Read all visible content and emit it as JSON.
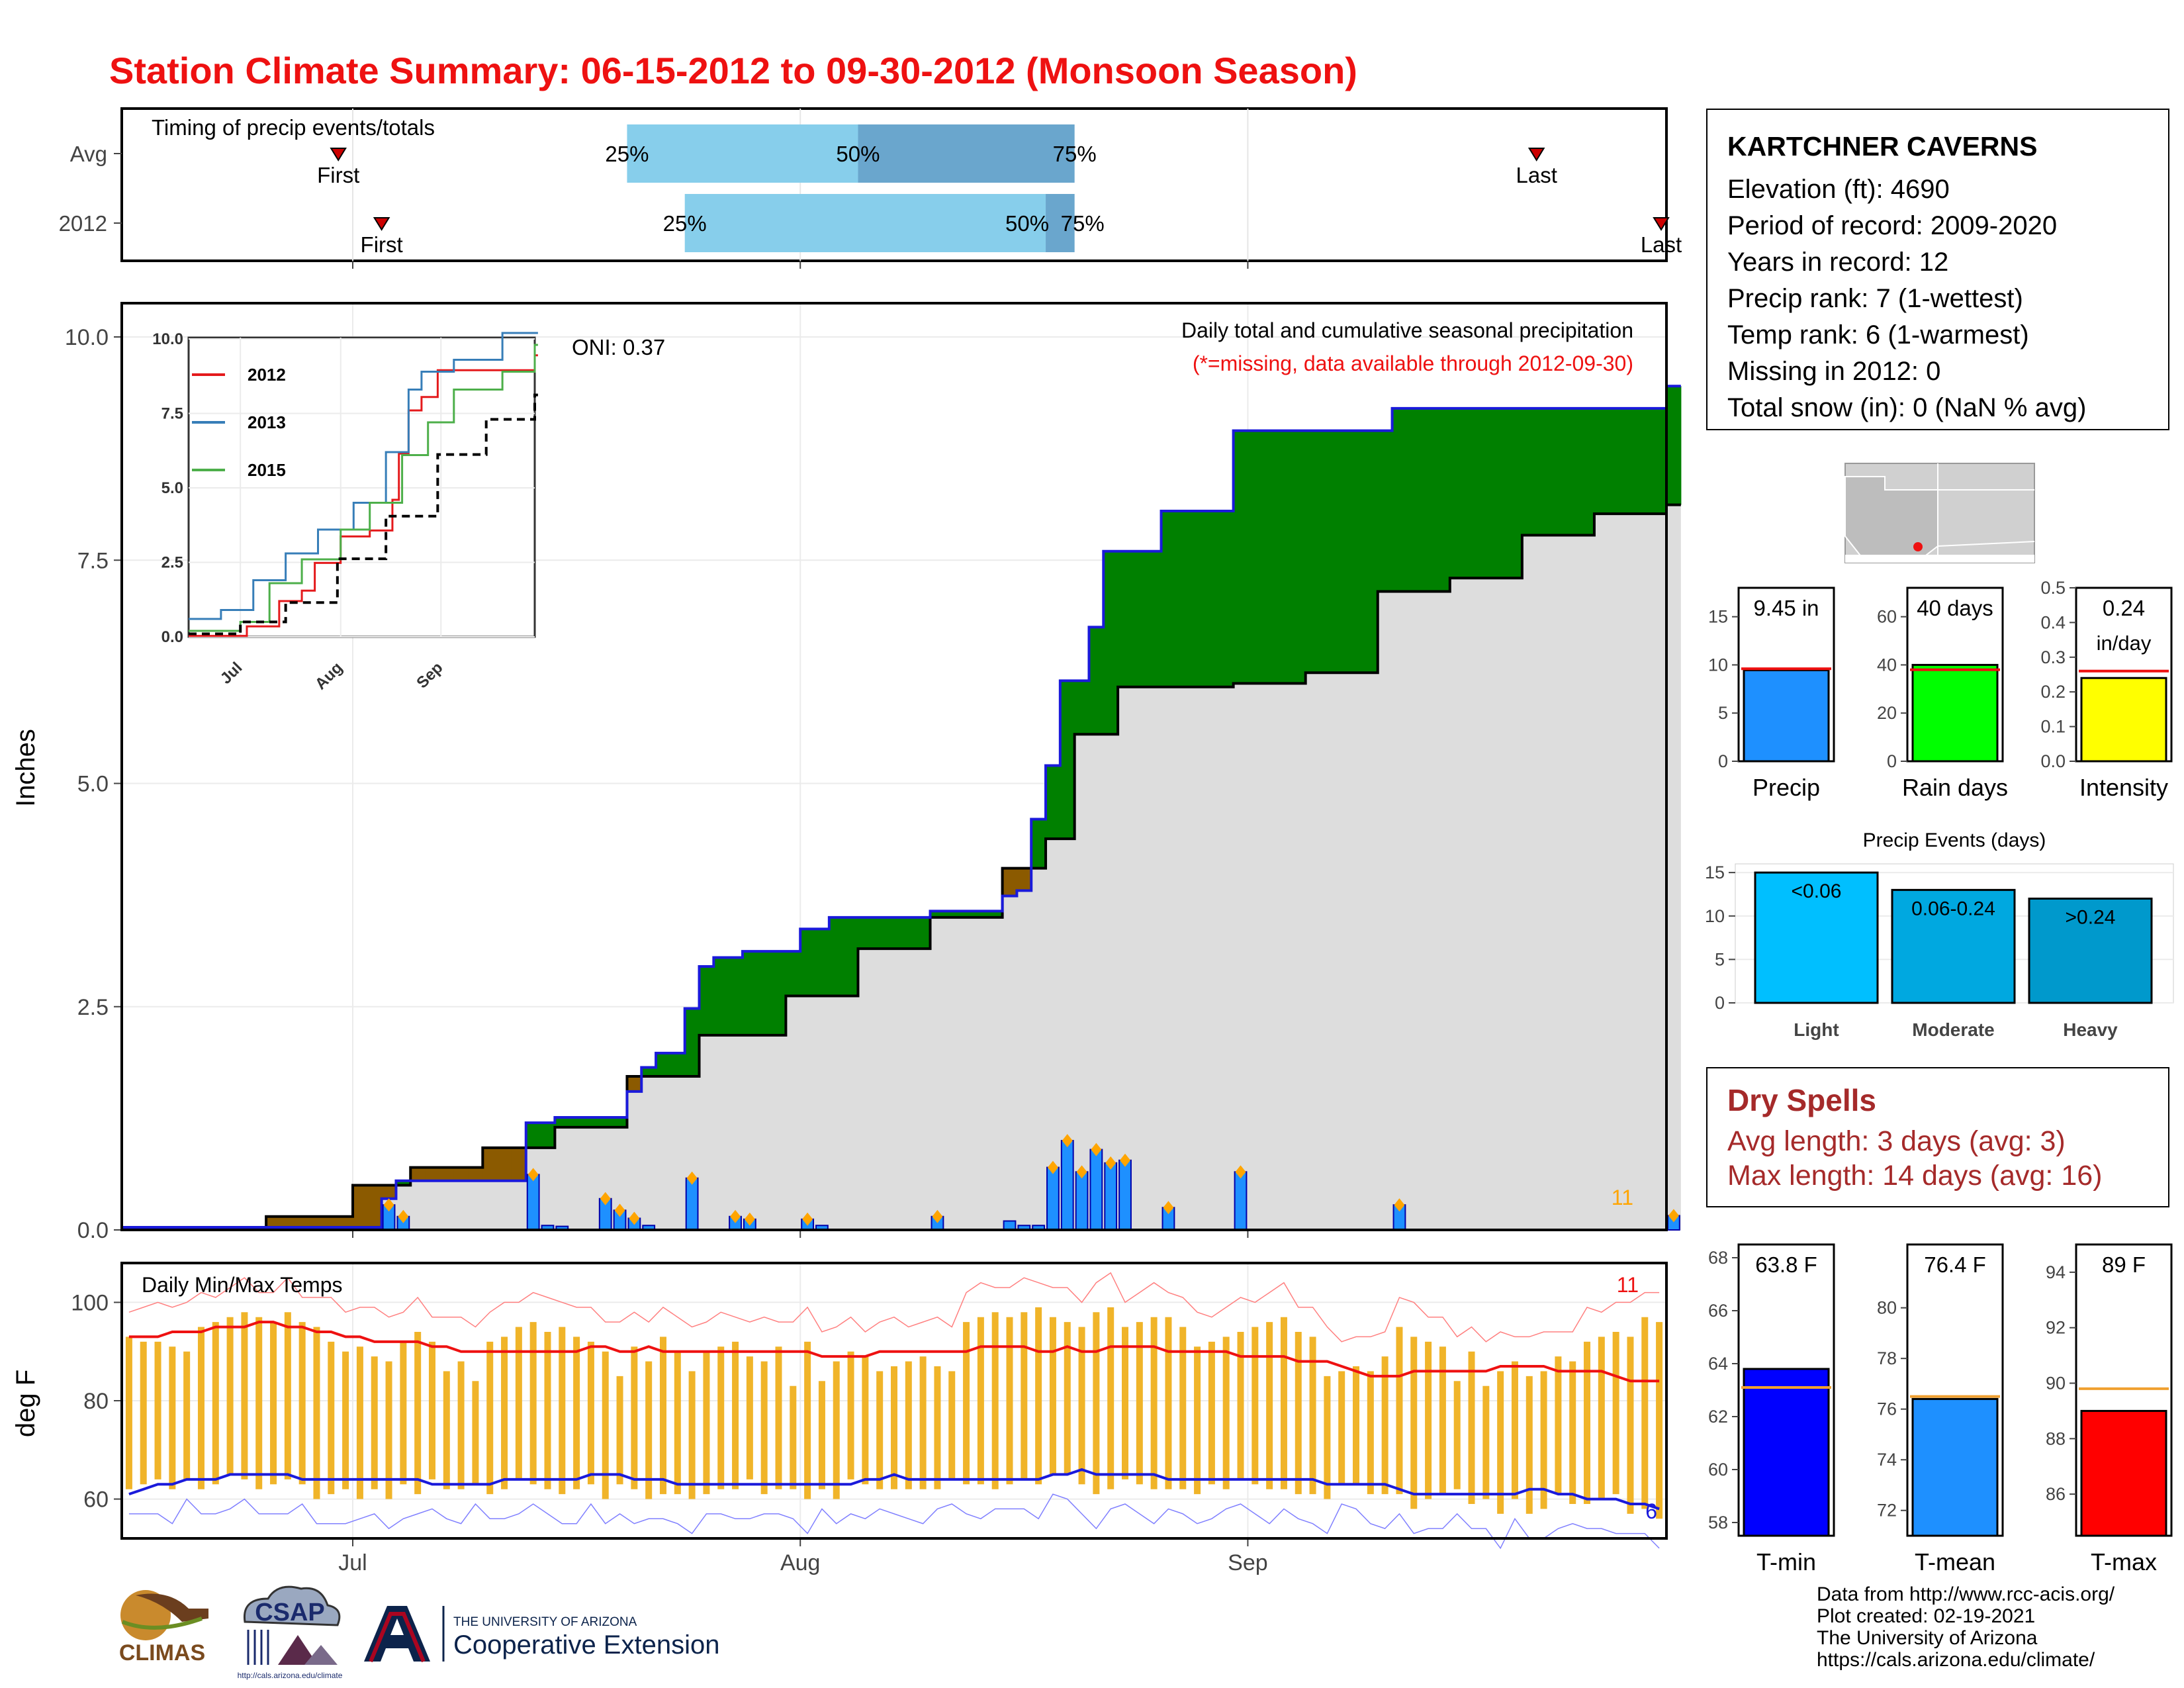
{
  "title": "Station Climate Summary: 06-15-2012 to 09-30-2012 (Monsoon Season)",
  "station": {
    "name": "KARTCHNER CAVERNS",
    "lines": [
      "Elevation (ft): 4690",
      "Period of record: 2009-2020",
      "Years in record: 12",
      "Precip rank: 7 (1-wettest)",
      "Temp rank: 6 (1-warmest)",
      "Missing in 2012: 0",
      "Total snow (in): 0 (NaN % avg)"
    ]
  },
  "dry_spells": {
    "heading": "Dry Spells",
    "avg": "Avg length: 3 days (avg: 3)",
    "max": "Max length: 14 days (avg: 16)"
  },
  "footer": [
    "Data from http://www.rcc-acis.org/",
    "Plot created: 02-19-2021",
    "The University of Arizona",
    "https://cals.arizona.edu/climate/"
  ],
  "logos": {
    "climas": "CLIMAS",
    "csap": "CSAP",
    "ua_line1": "THE UNIVERSITY OF ARIZONA",
    "ua_line2": "Cooperative Extension",
    "csap_url": "http://cals.arizona.edu/climate"
  },
  "colors": {
    "title": "#ee1111",
    "cum_2012": "#1a1adb",
    "above_avg": "#008000",
    "below_avg": "#8b5a00",
    "avg_fill": "#dddddd",
    "daily_bar": "#1e90ff",
    "tmax": "#ee1111",
    "tmin": "#1a1adb",
    "temp_bar": "#f0b429",
    "light": "#00bfff",
    "moderate": "#00a8e0",
    "heavy": "#0099cc",
    "rain_days": "#00ff00",
    "intensity": "#ffff00",
    "tmin_bar": "#0000ff",
    "tmean_bar": "#1e90ff",
    "tmax_bar": "#ff0000"
  },
  "chart_data": [
    {
      "id": "timing",
      "type": "bar",
      "title": "Timing of precip events/totals",
      "categories": [
        "Avg",
        "2012"
      ],
      "x_ticks": [
        "Jul",
        "Aug",
        "Sep"
      ],
      "rows": [
        {
          "name": "Avg",
          "first": "2012-06-30",
          "p25": "2012-07-20",
          "p50": "2012-08-05",
          "p75": "2012-08-20",
          "last": "2012-09-21",
          "labels": [
            "First",
            "25%",
            "50%",
            "75%",
            "Last"
          ]
        },
        {
          "name": "2012",
          "first": "2012-07-03",
          "p25": "2012-07-24",
          "p50": "2012-08-18",
          "p75": "2012-08-20",
          "last": "2012-09-30",
          "labels": [
            "First",
            "25%",
            "50%",
            "75%",
            "Last"
          ]
        }
      ]
    },
    {
      "id": "precip",
      "type": "area",
      "ylabel": "Inches",
      "ylim": [
        0,
        10
      ],
      "y_ticks": [
        "0.0",
        "2.5",
        "5.0",
        "7.5",
        "10.0"
      ],
      "x_ticks": [
        "Jul",
        "Aug",
        "Sep"
      ],
      "annotation": "ONI: 0.37",
      "caption": "Daily total and cumulative seasonal precipitation",
      "caption_red": "(*=missing, data available through 2012-09-30)",
      "missing_note": "11",
      "series": [
        {
          "name": "2012 cumulative",
          "dates": [
            "2012-06-15",
            "2012-07-03",
            "2012-07-04",
            "2012-07-13",
            "2012-07-15",
            "2012-07-20",
            "2012-07-21",
            "2012-07-22",
            "2012-07-24",
            "2012-07-25",
            "2012-07-26",
            "2012-07-28",
            "2012-08-01",
            "2012-08-03",
            "2012-08-10",
            "2012-08-15",
            "2012-08-16",
            "2012-08-17",
            "2012-08-18",
            "2012-08-19",
            "2012-08-21",
            "2012-08-22",
            "2012-08-26",
            "2012-08-31",
            "2012-09-11",
            "2012-09-30"
          ],
          "values": [
            0.03,
            0.35,
            0.55,
            1.2,
            1.26,
            1.55,
            1.82,
            1.98,
            2.48,
            2.95,
            3.05,
            3.12,
            3.37,
            3.5,
            3.57,
            3.74,
            3.8,
            4.6,
            5.2,
            6.15,
            6.75,
            7.6,
            8.05,
            8.95,
            9.2,
            9.45
          ]
        },
        {
          "name": "Average",
          "dates": [
            "2012-06-15",
            "2012-06-25",
            "2012-07-01",
            "2012-07-05",
            "2012-07-10",
            "2012-07-15",
            "2012-07-20",
            "2012-07-25",
            "2012-07-31",
            "2012-08-05",
            "2012-08-10",
            "2012-08-15",
            "2012-08-18",
            "2012-08-20",
            "2012-08-23",
            "2012-08-31",
            "2012-09-05",
            "2012-09-10",
            "2012-09-15",
            "2012-09-20",
            "2012-09-25",
            "2012-09-30"
          ],
          "values": [
            0.0,
            0.15,
            0.5,
            0.7,
            0.92,
            1.15,
            1.72,
            2.18,
            2.62,
            3.15,
            3.5,
            4.05,
            4.38,
            5.55,
            6.08,
            6.12,
            6.24,
            7.15,
            7.3,
            7.78,
            8.02,
            8.12
          ]
        }
      ],
      "daily_dates": [
        "2012-07-03",
        "2012-07-04",
        "2012-07-13",
        "2012-07-14",
        "2012-07-15",
        "2012-07-18",
        "2012-07-19",
        "2012-07-20",
        "2012-07-21",
        "2012-07-24",
        "2012-07-27",
        "2012-07-28",
        "2012-08-01",
        "2012-08-02",
        "2012-08-10",
        "2012-08-15",
        "2012-08-16",
        "2012-08-17",
        "2012-08-18",
        "2012-08-19",
        "2012-08-20",
        "2012-08-21",
        "2012-08-22",
        "2012-08-23",
        "2012-08-26",
        "2012-08-31",
        "2012-09-11",
        "2012-09-30"
      ],
      "daily_values": [
        0.28,
        0.15,
        0.62,
        0.05,
        0.04,
        0.35,
        0.22,
        0.13,
        0.05,
        0.58,
        0.15,
        0.12,
        0.12,
        0.05,
        0.15,
        0.1,
        0.05,
        0.05,
        0.7,
        1.0,
        0.65,
        0.9,
        0.75,
        0.78,
        0.25,
        0.65,
        0.28,
        0.16
      ]
    },
    {
      "id": "inset",
      "type": "line",
      "ylim": [
        0,
        10
      ],
      "y_ticks": [
        "0.0",
        "2.5",
        "5.0",
        "7.5",
        "10.0"
      ],
      "x_ticks": [
        "Jul",
        "Aug",
        "Sep"
      ],
      "series": [
        {
          "name": "2012",
          "color": "#e41a1c",
          "dates": [
            "2012-06-15",
            "2012-07-03",
            "2012-07-13",
            "2012-07-20",
            "2012-07-24",
            "2012-08-01",
            "2012-08-10",
            "2012-08-17",
            "2012-08-19",
            "2012-08-22",
            "2012-08-26",
            "2012-08-31",
            "2012-09-30"
          ],
          "values": [
            0.03,
            0.35,
            1.2,
            1.55,
            2.48,
            3.37,
            3.57,
            4.6,
            6.15,
            7.6,
            8.05,
            8.95,
            9.45
          ]
        },
        {
          "name": "2013",
          "color": "#377eb8",
          "dates": [
            "2012-06-15",
            "2012-06-25",
            "2012-07-05",
            "2012-07-15",
            "2012-07-25",
            "2012-08-05",
            "2012-08-15",
            "2012-08-22",
            "2012-08-26",
            "2012-09-05",
            "2012-09-20",
            "2012-09-30"
          ],
          "values": [
            0.6,
            0.9,
            1.9,
            2.8,
            3.6,
            4.5,
            6.2,
            8.3,
            8.9,
            9.3,
            10.4,
            10.8
          ]
        },
        {
          "name": "2015",
          "color": "#4daf4a",
          "dates": [
            "2012-06-15",
            "2012-07-01",
            "2012-07-10",
            "2012-07-20",
            "2012-08-01",
            "2012-08-10",
            "2012-08-20",
            "2012-08-28",
            "2012-09-05",
            "2012-09-20",
            "2012-09-30"
          ],
          "values": [
            0.2,
            0.5,
            1.8,
            2.6,
            3.6,
            4.5,
            6.1,
            7.2,
            8.3,
            8.9,
            9.8
          ]
        },
        {
          "name": "Average",
          "color": "#000000",
          "dashed": true,
          "dates": [
            "2012-06-15",
            "2012-07-01",
            "2012-07-15",
            "2012-07-31",
            "2012-08-15",
            "2012-08-31",
            "2012-09-15",
            "2012-09-30"
          ],
          "values": [
            0.1,
            0.5,
            1.15,
            2.62,
            4.05,
            6.12,
            7.3,
            8.12
          ]
        }
      ]
    },
    {
      "id": "temps",
      "type": "line",
      "title": "Daily Min/Max Temps",
      "ylabel": "deg F",
      "ylim": [
        52,
        108
      ],
      "y_ticks": [
        "60",
        "80",
        "100"
      ],
      "x_ticks": [
        "Jul",
        "Aug",
        "Sep"
      ],
      "note_top": "11",
      "note_bottom": "6",
      "start_date": "2012-06-15",
      "tmax": [
        93,
        92,
        92,
        91,
        90,
        95,
        96,
        97,
        98,
        97,
        96,
        98,
        96,
        95,
        92,
        90,
        91,
        89,
        88,
        92,
        94,
        92,
        86,
        88,
        84,
        92,
        93,
        95,
        96,
        94,
        95,
        93,
        92,
        90,
        85,
        91,
        88,
        93,
        90,
        86,
        90,
        91,
        92,
        89,
        88,
        91,
        83,
        92,
        84,
        88,
        90,
        89,
        86,
        87,
        88,
        89,
        87,
        86,
        96,
        97,
        98,
        97,
        98,
        99,
        97,
        96,
        95,
        98,
        99,
        95,
        96,
        97,
        97,
        95,
        91,
        92,
        93,
        94,
        95,
        96,
        97,
        94,
        93,
        85,
        86,
        87,
        86,
        89,
        95,
        93,
        92,
        91,
        84,
        90,
        83,
        86,
        88,
        85,
        86,
        89,
        88,
        92,
        93,
        94,
        93,
        97,
        96
      ],
      "tmin": [
        62,
        63,
        64,
        62,
        64,
        62,
        63,
        65,
        64,
        62,
        63,
        64,
        63,
        60,
        61,
        62,
        60,
        62,
        60,
        63,
        61,
        64,
        62,
        62,
        63,
        61,
        62,
        64,
        63,
        62,
        61,
        62,
        63,
        60,
        63,
        62,
        60,
        61,
        61,
        60,
        61,
        62,
        62,
        64,
        61,
        62,
        62,
        60,
        62,
        60,
        64,
        63,
        62,
        62,
        62,
        62,
        62,
        64,
        63,
        63,
        62,
        63,
        64,
        63,
        65,
        65,
        63,
        61,
        62,
        64,
        63,
        62,
        62,
        62,
        61,
        63,
        62,
        64,
        63,
        62,
        62,
        61,
        61,
        60,
        63,
        63,
        61,
        61,
        61,
        58,
        60,
        61,
        62,
        59,
        60,
        57,
        60,
        57,
        58,
        61,
        59,
        59,
        60,
        61,
        57,
        58,
        56
      ],
      "avg_max": [
        93,
        93,
        93,
        94,
        94,
        94,
        95,
        95,
        95,
        96,
        96,
        95,
        95,
        94,
        94,
        93,
        93,
        92,
        92,
        92,
        92,
        91,
        91,
        90,
        90,
        90,
        90,
        90,
        90,
        90,
        90,
        90,
        91,
        91,
        90,
        90,
        91,
        90,
        90,
        90,
        90,
        90,
        90,
        90,
        90,
        90,
        90,
        90,
        89,
        89,
        89,
        89,
        90,
        90,
        90,
        90,
        90,
        90,
        90,
        91,
        91,
        91,
        91,
        90,
        90,
        91,
        90,
        90,
        91,
        91,
        91,
        91,
        90,
        90,
        90,
        90,
        90,
        89,
        89,
        89,
        89,
        88,
        88,
        88,
        87,
        86,
        85,
        85,
        85,
        86,
        86,
        86,
        86,
        86,
        86,
        87,
        87,
        87,
        87,
        86,
        86,
        86,
        86,
        85,
        84,
        84,
        84
      ],
      "avg_min": [
        61,
        62,
        63,
        63,
        64,
        64,
        64,
        65,
        65,
        65,
        65,
        65,
        64,
        64,
        64,
        64,
        64,
        64,
        64,
        64,
        64,
        63,
        63,
        63,
        63,
        63,
        64,
        64,
        64,
        64,
        64,
        64,
        65,
        65,
        65,
        64,
        64,
        64,
        63,
        63,
        63,
        63,
        63,
        63,
        63,
        63,
        63,
        63,
        63,
        63,
        63,
        64,
        64,
        65,
        64,
        64,
        64,
        64,
        64,
        64,
        64,
        64,
        64,
        64,
        65,
        65,
        66,
        65,
        65,
        65,
        65,
        65,
        64,
        64,
        64,
        64,
        64,
        64,
        64,
        64,
        64,
        64,
        64,
        63,
        63,
        63,
        63,
        63,
        62,
        61,
        61,
        61,
        61,
        61,
        61,
        61,
        61,
        62,
        62,
        61,
        61,
        60,
        60,
        60,
        59,
        59,
        58
      ]
    },
    {
      "id": "totals",
      "type": "bar",
      "panels": [
        {
          "name": "Precip",
          "value": 9.45,
          "avg": 9.6,
          "ylim": [
            0,
            18
          ],
          "ticks": [
            "0",
            "5",
            "10",
            "15"
          ],
          "label": "9.45 in"
        },
        {
          "name": "Rain days",
          "value": 40,
          "avg": 38,
          "ylim": [
            0,
            72
          ],
          "ticks": [
            "0",
            "20",
            "40",
            "60"
          ],
          "label": "40 days"
        },
        {
          "name": "Intensity",
          "value": 0.24,
          "avg": 0.26,
          "ylim": [
            0,
            0.5
          ],
          "ticks": [
            "0.0",
            "0.1",
            "0.2",
            "0.3",
            "0.4",
            "0.5"
          ],
          "label": "0.24 in/day"
        }
      ]
    },
    {
      "id": "events",
      "type": "bar",
      "title": "Precip Events (days)",
      "categories": [
        "Light",
        "Moderate",
        "Heavy"
      ],
      "values": [
        15,
        13,
        12
      ],
      "labels": [
        "<0.06",
        "0.06-0.24",
        ">0.24"
      ],
      "ylim": [
        0,
        16
      ],
      "ticks": [
        "0",
        "5",
        "10",
        "15"
      ]
    },
    {
      "id": "tempbars",
      "type": "bar",
      "panels": [
        {
          "name": "T-min",
          "value": 63.8,
          "avg": 63.1,
          "ylim": [
            57.5,
            68.5
          ],
          "ticks": [
            "58",
            "60",
            "62",
            "64",
            "66",
            "68"
          ],
          "label": "63.8 F"
        },
        {
          "name": "T-mean",
          "value": 76.4,
          "avg": 76.5,
          "ylim": [
            71,
            82.5
          ],
          "ticks": [
            "72",
            "74",
            "76",
            "78",
            "80"
          ],
          "label": "76.4 F"
        },
        {
          "name": "T-max",
          "value": 89.0,
          "avg": 89.8,
          "ylim": [
            84.5,
            95
          ],
          "ticks": [
            "86",
            "88",
            "90",
            "92",
            "94"
          ],
          "label": "89 F"
        }
      ]
    }
  ]
}
